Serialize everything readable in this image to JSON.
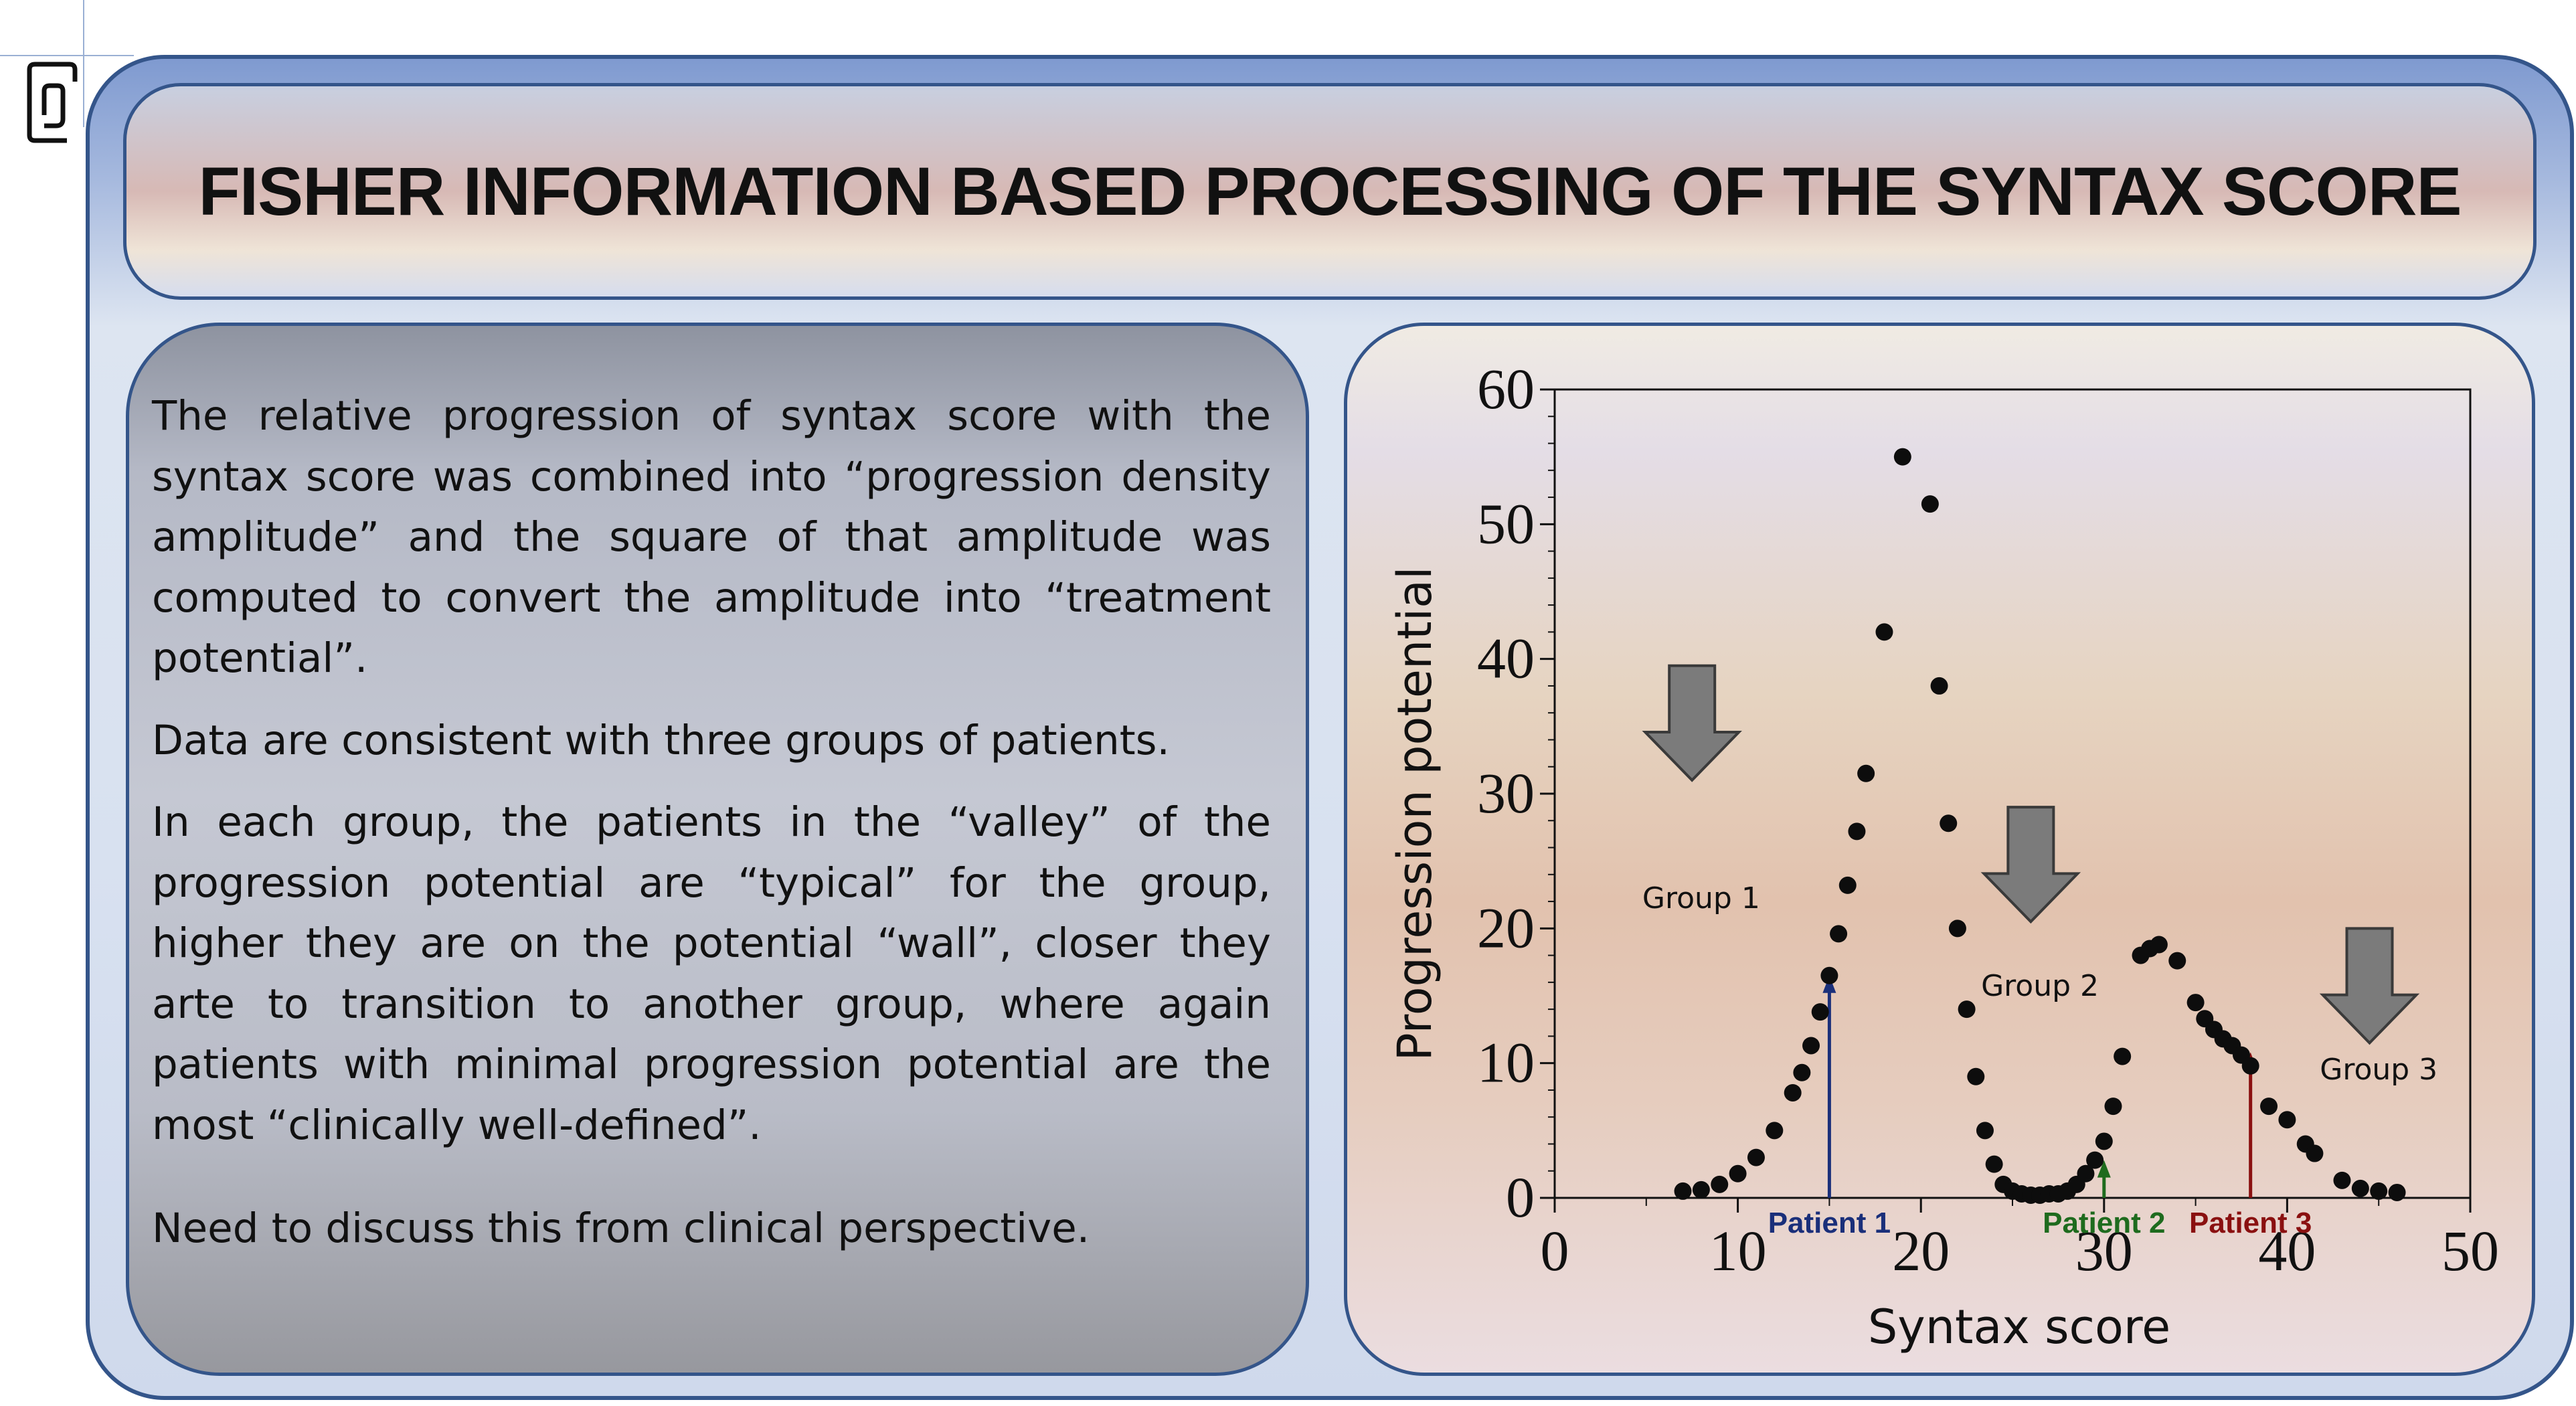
{
  "title": "FISHER INFORMATION BASED PROCESSING OF THE SYNTAX SCORE",
  "text_panel": {
    "paragraphs": [
      "The relative progression of syntax score with the syntax score was combined into “progression density amplitude” and the square of that amplitude was computed to convert the amplitude into “treatment potential”.",
      "Data are consistent with three groups of patients.",
      "In each group, the patients in the “valley” of the progression potential are “typical” for the group, higher they are on the potential “wall”, closer they arte to transition to another group,  where again patients with minimal progression potential are the most “clinically well-defined”.",
      "Need to discuss this from clinical perspective."
    ]
  },
  "chart_data": {
    "type": "scatter",
    "title": "",
    "xlabel": "Syntax score",
    "ylabel": "Progression potential",
    "xlim": [
      0,
      50
    ],
    "ylim": [
      0,
      60
    ],
    "xticks": [
      0,
      10,
      20,
      30,
      40,
      50
    ],
    "yticks": [
      0,
      10,
      20,
      30,
      40,
      50,
      60
    ],
    "grid": false,
    "points": [
      [
        7,
        0.5
      ],
      [
        8,
        0.6
      ],
      [
        9,
        1.0
      ],
      [
        10,
        1.8
      ],
      [
        11,
        3.0
      ],
      [
        12,
        5.0
      ],
      [
        13,
        7.8
      ],
      [
        13.5,
        9.3
      ],
      [
        14,
        11.3
      ],
      [
        14.5,
        13.8
      ],
      [
        15,
        16.5
      ],
      [
        15.5,
        19.6
      ],
      [
        16,
        23.2
      ],
      [
        16.5,
        27.2
      ],
      [
        17,
        31.5
      ],
      [
        18,
        42.0
      ],
      [
        19,
        55.0
      ],
      [
        20.5,
        51.5
      ],
      [
        21,
        38.0
      ],
      [
        21.5,
        27.8
      ],
      [
        22,
        20.0
      ],
      [
        22.5,
        14.0
      ],
      [
        23,
        9.0
      ],
      [
        23.5,
        5.0
      ],
      [
        24,
        2.5
      ],
      [
        24.5,
        1.0
      ],
      [
        25,
        0.5
      ],
      [
        25.5,
        0.3
      ],
      [
        26,
        0.2
      ],
      [
        26.5,
        0.2
      ],
      [
        27,
        0.3
      ],
      [
        27.5,
        0.3
      ],
      [
        28,
        0.5
      ],
      [
        28.5,
        1.0
      ],
      [
        29,
        1.8
      ],
      [
        29.5,
        2.8
      ],
      [
        30,
        4.2
      ],
      [
        30.5,
        6.8
      ],
      [
        31,
        10.5
      ],
      [
        32,
        18.0
      ],
      [
        32.5,
        18.5
      ],
      [
        33,
        18.8
      ],
      [
        34,
        17.6
      ],
      [
        35,
        14.5
      ],
      [
        35.5,
        13.3
      ],
      [
        36,
        12.5
      ],
      [
        36.5,
        11.8
      ],
      [
        37,
        11.3
      ],
      [
        37.5,
        10.6
      ],
      [
        38,
        9.8
      ],
      [
        39,
        6.8
      ],
      [
        40,
        5.8
      ],
      [
        41,
        4.0
      ],
      [
        41.5,
        3.3
      ],
      [
        43,
        1.3
      ],
      [
        44,
        0.7
      ],
      [
        45,
        0.5
      ],
      [
        46,
        0.4
      ]
    ],
    "groups": [
      {
        "label": "Group 1",
        "arrow_x": 7.5,
        "arrow_y_top": 39.5,
        "arrow_y_bottom": 31,
        "label_x": 8,
        "label_y": 21.5
      },
      {
        "label": "Group 2",
        "arrow_x": 26,
        "arrow_y_top": 29,
        "arrow_y_bottom": 20.5,
        "label_x": 26.5,
        "label_y": 15
      },
      {
        "label": "Group 3",
        "arrow_x": 44.5,
        "arrow_y_top": 20,
        "arrow_y_bottom": 11.5,
        "label_x": 45,
        "label_y": 8.8
      }
    ],
    "patients": [
      {
        "label": "Patient 1",
        "x": 15,
        "y_top": 16.5,
        "color": "#1a2f7a"
      },
      {
        "label": "Patient 2",
        "x": 30,
        "y_top": 2.8,
        "color": "#1e6b1e"
      },
      {
        "label": "Patient 3",
        "x": 38,
        "y_top": 10.8,
        "color": "#8a1010"
      }
    ]
  }
}
